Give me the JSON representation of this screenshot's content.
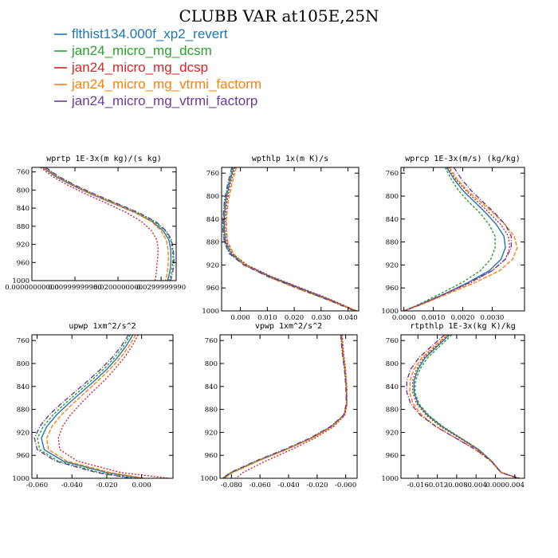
{
  "chart_data": {
    "title": "CLUBB VAR at105E,25N",
    "series": [
      {
        "name": "flthist134.000f_xp2_revert",
        "color": "#1f77b4",
        "dash": ""
      },
      {
        "name": "jan24_micro_mg_dcsm",
        "color": "#2ca02c",
        "dash": "3,2"
      },
      {
        "name": "jan24_micro_mg_dcsp",
        "color": "#d62728",
        "dash": "2,2"
      },
      {
        "name": "jan24_micro_mg_vtrmi_factorm",
        "color": "#ff7f0e",
        "dash": "5,2"
      },
      {
        "name": "jan24_micro_mg_vtrmi_factorp",
        "color": "#6a3d9a",
        "dash": "6,2,1,2"
      }
    ],
    "y_axis": {
      "type": "line",
      "ylim": [
        1000,
        750
      ],
      "y_ticks": [
        760,
        800,
        840,
        880,
        920,
        960,
        1000
      ]
    },
    "panels": [
      {
        "type": "line",
        "title": "wprtp  1E-3x(m kg)/(s kg)",
        "xlim": [
          0.0,
          0.0335
        ],
        "x_ticks": [
          0.0,
          0.01,
          0.02,
          0.03
        ],
        "x_tick_labels": [
          "0.00000000000",
          "0.00999999980",
          "0.0200000000",
          "0.0299999990"
        ],
        "y": [
          750,
          770,
          790,
          810,
          830,
          850,
          870,
          890,
          910,
          930,
          950,
          970,
          990,
          1000
        ],
        "values": [
          [
            0.0025,
            0.0055,
            0.0095,
            0.014,
            0.019,
            0.024,
            0.028,
            0.0305,
            0.0318,
            0.0322,
            0.0323,
            0.0322,
            0.0318,
            0.0315
          ],
          [
            0.003,
            0.006,
            0.01,
            0.0145,
            0.0195,
            0.0245,
            0.0285,
            0.031,
            0.0322,
            0.0326,
            0.0328,
            0.0326,
            0.0322,
            0.0318
          ],
          [
            0.002,
            0.0048,
            0.0085,
            0.0128,
            0.0175,
            0.022,
            0.0255,
            0.0278,
            0.029,
            0.0293,
            0.0292,
            0.029,
            0.0288,
            0.0286
          ],
          [
            0.0028,
            0.0058,
            0.0098,
            0.0142,
            0.0192,
            0.024,
            0.0278,
            0.03,
            0.0312,
            0.0316,
            0.0317,
            0.0316,
            0.0313,
            0.031
          ],
          [
            0.0032,
            0.0062,
            0.0102,
            0.0148,
            0.0198,
            0.0248,
            0.0288,
            0.0312,
            0.0324,
            0.0328,
            0.033,
            0.0329,
            0.0325,
            0.0322
          ]
        ]
      },
      {
        "type": "line",
        "title": "wpthlp  1x(m K)/s",
        "xlim": [
          -0.007,
          0.044
        ],
        "x_ticks": [
          0.0,
          0.01,
          0.02,
          0.03,
          0.04
        ],
        "x_tick_labels": [
          "0.000",
          "0.010",
          "0.020",
          "0.030",
          "0.040"
        ],
        "y": [
          750,
          780,
          810,
          840,
          860,
          880,
          900,
          920,
          940,
          960,
          980,
          1000
        ],
        "values": [
          [
            -0.0025,
            -0.0042,
            -0.0055,
            -0.006,
            -0.006,
            -0.0055,
            -0.0035,
            0.002,
            0.011,
            0.022,
            0.033,
            0.043
          ],
          [
            -0.0028,
            -0.0045,
            -0.0058,
            -0.0063,
            -0.0063,
            -0.0058,
            -0.004,
            0.0015,
            0.0105,
            0.0215,
            0.0325,
            0.0427
          ],
          [
            -0.002,
            -0.0038,
            -0.005,
            -0.0055,
            -0.0055,
            -0.005,
            -0.003,
            0.0025,
            0.0115,
            0.0225,
            0.0335,
            0.0432
          ],
          [
            -0.0015,
            -0.0032,
            -0.0046,
            -0.0052,
            -0.0052,
            -0.0047,
            -0.0026,
            0.0018,
            0.01,
            0.0205,
            0.032,
            0.0435
          ],
          [
            -0.0032,
            -0.0048,
            -0.006,
            -0.0065,
            -0.0065,
            -0.006,
            -0.0042,
            0.0012,
            0.0102,
            0.0212,
            0.0322,
            0.0425
          ]
        ]
      },
      {
        "type": "line",
        "title": "wprcp  1E-3x(m/s) (kg/kg)",
        "xlim": [
          -0.0001,
          0.0041
        ],
        "x_ticks": [
          0.0,
          0.001,
          0.002,
          0.003
        ],
        "x_tick_labels": [
          "0.0000",
          "0.0010",
          "0.0020",
          "0.0030"
        ],
        "y": [
          750,
          770,
          790,
          810,
          830,
          850,
          870,
          890,
          910,
          930,
          950,
          970,
          990,
          1000
        ],
        "values": [
          [
            0.00145,
            0.0017,
            0.002,
            0.0024,
            0.0028,
            0.00315,
            0.0034,
            0.00345,
            0.0033,
            0.0029,
            0.0022,
            0.0014,
            0.0005,
            0.0
          ],
          [
            0.0014,
            0.0016,
            0.00185,
            0.0022,
            0.0026,
            0.0029,
            0.0031,
            0.0031,
            0.00295,
            0.0026,
            0.002,
            0.00125,
            0.00045,
            0.0
          ],
          [
            0.0015,
            0.00175,
            0.0021,
            0.0025,
            0.00292,
            0.0033,
            0.00355,
            0.0036,
            0.00345,
            0.003,
            0.0023,
            0.00145,
            0.00052,
            0.0
          ],
          [
            0.00155,
            0.0018,
            0.00215,
            0.0026,
            0.00305,
            0.00345,
            0.00375,
            0.00385,
            0.0037,
            0.00325,
            0.00245,
            0.0015,
            0.00055,
            0.0
          ],
          [
            0.0017,
            0.00195,
            0.00228,
            0.00268,
            0.0031,
            0.00345,
            0.00365,
            0.00365,
            0.00345,
            0.003,
            0.00225,
            0.0014,
            0.0005,
            0.0
          ]
        ]
      },
      {
        "type": "line",
        "title": "upwp  1xm^2/s^2",
        "xlim": [
          -0.063,
          0.018
        ],
        "x_ticks": [
          -0.06,
          -0.04,
          -0.02,
          0.0
        ],
        "x_tick_labels": [
          "-0.060",
          "-0.040",
          "-0.020",
          "0.000"
        ],
        "y": [
          750,
          770,
          790,
          810,
          830,
          850,
          870,
          890,
          910,
          930,
          950,
          970,
          990,
          1000
        ],
        "values": [
          [
            -0.005,
            -0.009,
            -0.014,
            -0.02,
            -0.027,
            -0.0345,
            -0.042,
            -0.049,
            -0.0545,
            -0.0575,
            -0.056,
            -0.045,
            -0.02,
            0.0
          ],
          [
            -0.0065,
            -0.0105,
            -0.0155,
            -0.0218,
            -0.029,
            -0.0365,
            -0.044,
            -0.051,
            -0.0565,
            -0.0598,
            -0.0585,
            -0.048,
            -0.024,
            -0.004
          ],
          [
            -0.002,
            -0.0055,
            -0.01,
            -0.0155,
            -0.0215,
            -0.0285,
            -0.035,
            -0.041,
            -0.0455,
            -0.0478,
            -0.047,
            -0.037,
            -0.012,
            0.016
          ],
          [
            -0.0035,
            -0.0072,
            -0.0122,
            -0.0182,
            -0.025,
            -0.0322,
            -0.0395,
            -0.0462,
            -0.0515,
            -0.0545,
            -0.0535,
            -0.043,
            -0.018,
            0.002
          ],
          [
            -0.0075,
            -0.0118,
            -0.017,
            -0.0235,
            -0.0308,
            -0.0385,
            -0.0462,
            -0.0532,
            -0.0585,
            -0.0615,
            -0.06,
            -0.0495,
            -0.026,
            -0.006
          ]
        ]
      },
      {
        "type": "line",
        "title": "vpwp  1xm^2/s^2",
        "xlim": [
          -0.088,
          0.008
        ],
        "x_ticks": [
          -0.08,
          -0.06,
          -0.04,
          -0.02,
          0.0
        ],
        "x_tick_labels": [
          "-0.080",
          "-0.060",
          "-0.040",
          "-0.020",
          "-0.000"
        ],
        "y": [
          750,
          780,
          810,
          840,
          870,
          890,
          910,
          930,
          950,
          970,
          990,
          1000
        ],
        "values": [
          [
            -0.003,
            -0.002,
            -0.0005,
            0.0005,
            0.0008,
            -0.001,
            -0.01,
            -0.024,
            -0.042,
            -0.062,
            -0.08,
            -0.086
          ],
          [
            -0.0032,
            -0.0022,
            -0.0007,
            0.0003,
            0.0006,
            -0.0012,
            -0.0102,
            -0.0242,
            -0.0422,
            -0.0622,
            -0.0798,
            -0.085
          ],
          [
            -0.0025,
            -0.0015,
            -0.0001,
            0.0008,
            0.001,
            -0.0005,
            -0.0085,
            -0.0215,
            -0.038,
            -0.056,
            -0.072,
            -0.077
          ],
          [
            -0.0028,
            -0.0018,
            -0.0003,
            0.0006,
            0.0009,
            -0.0008,
            -0.0096,
            -0.0235,
            -0.0415,
            -0.0612,
            -0.079,
            -0.085
          ],
          [
            -0.0035,
            -0.0025,
            -0.0009,
            0.0001,
            0.0004,
            -0.0015,
            -0.0108,
            -0.025,
            -0.0432,
            -0.0632,
            -0.0808,
            -0.0862
          ]
        ]
      },
      {
        "type": "line",
        "title": "rtpthlp  1E-3x(kg K)/kg",
        "xlim": [
          -0.0195,
          0.006
        ],
        "x_ticks": [
          -0.016,
          -0.012,
          -0.008,
          -0.004,
          0.0,
          0.004
        ],
        "x_tick_labels": [
          "-0.016",
          "-0.012",
          "-0.008",
          "-0.004",
          "0.000",
          "0.004"
        ],
        "y": [
          750,
          770,
          790,
          810,
          830,
          850,
          870,
          890,
          910,
          930,
          950,
          970,
          990,
          1000
        ],
        "values": [
          [
            -0.0095,
            -0.012,
            -0.0145,
            -0.016,
            -0.0168,
            -0.0168,
            -0.016,
            -0.014,
            -0.011,
            -0.0072,
            -0.0035,
            -0.0008,
            0.0012,
            0.0048
          ],
          [
            -0.009,
            -0.0115,
            -0.014,
            -0.0156,
            -0.0165,
            -0.0166,
            -0.0158,
            -0.0138,
            -0.0108,
            -0.0071,
            -0.0034,
            -0.0008,
            0.0012,
            0.0048
          ],
          [
            -0.0098,
            -0.0123,
            -0.0148,
            -0.0163,
            -0.0171,
            -0.0171,
            -0.0163,
            -0.0143,
            -0.0113,
            -0.0074,
            -0.0036,
            -0.0008,
            0.0012,
            0.005
          ],
          [
            -0.01,
            -0.0126,
            -0.0152,
            -0.0168,
            -0.0176,
            -0.0177,
            -0.017,
            -0.0152,
            -0.0122,
            -0.0082,
            -0.0042,
            -0.001,
            0.0011,
            0.0046
          ],
          [
            -0.0105,
            -0.0132,
            -0.0158,
            -0.0175,
            -0.0183,
            -0.0183,
            -0.0175,
            -0.0155,
            -0.0123,
            -0.0082,
            -0.004,
            -0.0009,
            0.0012,
            0.0047
          ]
        ]
      }
    ]
  }
}
